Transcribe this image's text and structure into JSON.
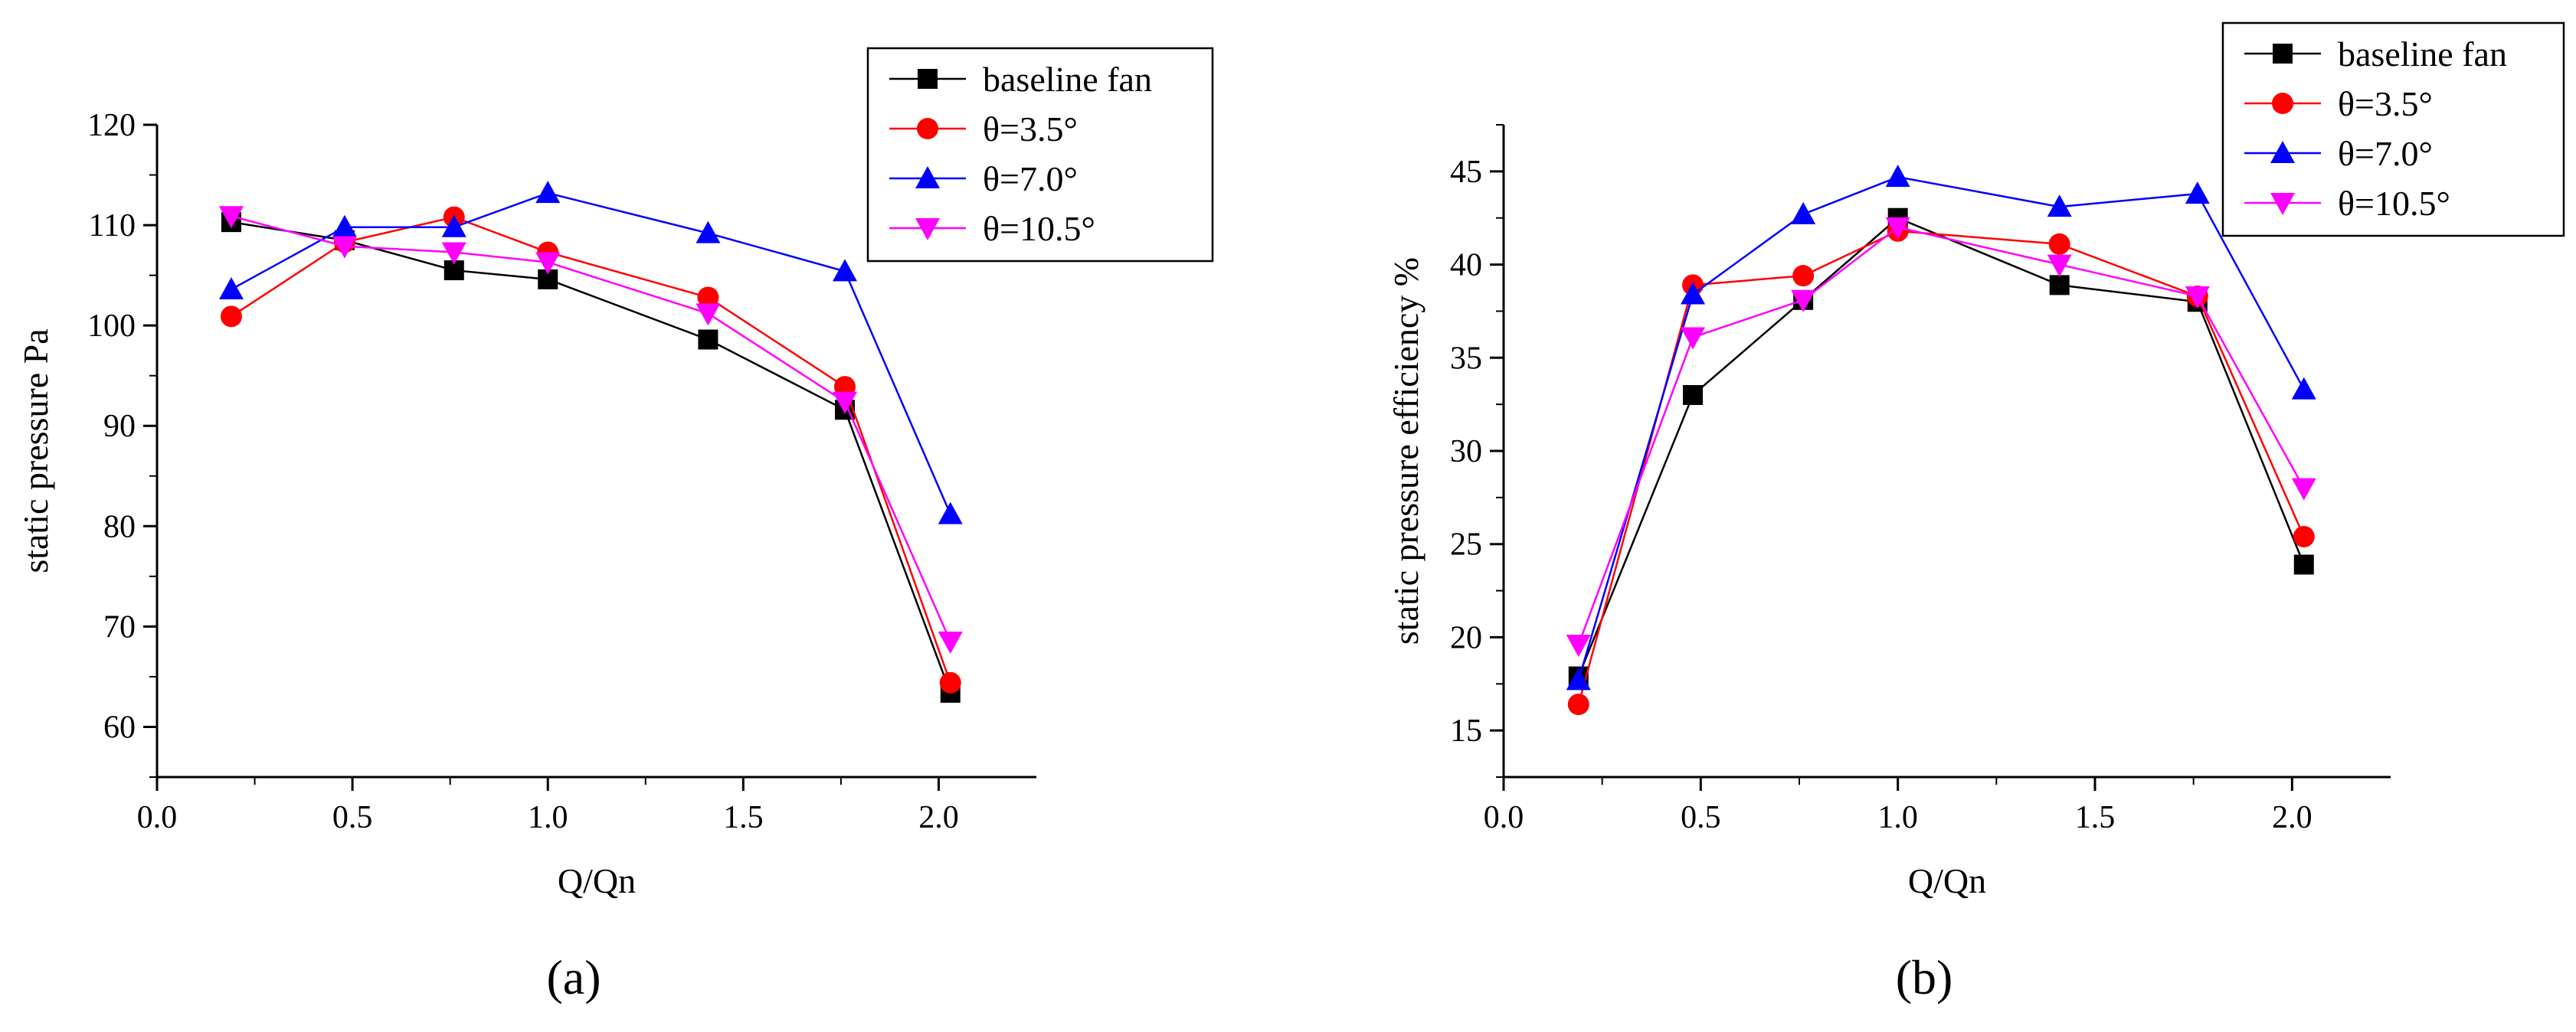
{
  "chart_data": [
    {
      "type": "line",
      "panel_label": "(a)",
      "xlabel": "Q/Qn",
      "ylabel": "static pressure Pa",
      "xlim": [
        0.0,
        2.25
      ],
      "ylim": [
        55,
        120
      ],
      "xticks": [
        0.0,
        0.5,
        1.0,
        1.5,
        2.0
      ],
      "xtick_labels": [
        "0.0",
        "0.5",
        "1.0",
        "1.5",
        "2.0"
      ],
      "yticks": [
        60,
        70,
        80,
        90,
        100,
        110,
        120
      ],
      "ytick_labels": [
        "60",
        "70",
        "80",
        "90",
        "100",
        "110",
        "120"
      ],
      "grid": false,
      "legend_position": "top-right",
      "x": [
        0.19,
        0.48,
        0.76,
        1.0,
        1.41,
        1.76,
        2.03
      ],
      "series": [
        {
          "name": "baseline fan",
          "color": "#000000",
          "marker": "square",
          "values": [
            110.3,
            108.5,
            105.5,
            104.6,
            98.6,
            91.6,
            63.4
          ]
        },
        {
          "name": "θ=3.5°",
          "color": "#ff0000",
          "marker": "circle",
          "values": [
            100.9,
            108.3,
            110.8,
            107.3,
            102.8,
            93.9,
            64.4
          ]
        },
        {
          "name": "θ=7.0°",
          "color": "#0000ff",
          "marker": "triangle-up",
          "values": [
            103.6,
            109.8,
            109.8,
            113.2,
            109.2,
            105.4,
            81.2
          ]
        },
        {
          "name": "θ=10.5°",
          "color": "#ff00ff",
          "marker": "triangle-down",
          "values": [
            110.9,
            107.9,
            107.3,
            106.3,
            101.2,
            92.4,
            68.5
          ]
        }
      ]
    },
    {
      "type": "line",
      "panel_label": "(b)",
      "xlabel": "Q/Qn",
      "ylabel": "static pressure efficiency %",
      "xlim": [
        0.0,
        2.25
      ],
      "ylim": [
        12.5,
        47.5
      ],
      "xticks": [
        0.0,
        0.5,
        1.0,
        1.5,
        2.0
      ],
      "xtick_labels": [
        "0.0",
        "0.5",
        "1.0",
        "1.5",
        "2.0"
      ],
      "yticks": [
        15,
        20,
        25,
        30,
        35,
        40,
        45
      ],
      "ytick_labels": [
        "15",
        "20",
        "25",
        "30",
        "35",
        "40",
        "45"
      ],
      "grid": false,
      "legend_position": "top-right",
      "x": [
        0.19,
        0.48,
        0.76,
        1.0,
        1.41,
        1.76,
        2.03
      ],
      "series": [
        {
          "name": "baseline fan",
          "color": "#000000",
          "marker": "square",
          "values": [
            17.9,
            33.0,
            38.1,
            42.5,
            38.9,
            38.0,
            23.9
          ]
        },
        {
          "name": "θ=3.5°",
          "color": "#ff0000",
          "marker": "circle",
          "values": [
            16.4,
            38.9,
            39.4,
            41.8,
            41.1,
            38.3,
            25.4
          ]
        },
        {
          "name": "θ=7.0°",
          "color": "#0000ff",
          "marker": "triangle-up",
          "values": [
            17.7,
            38.4,
            42.7,
            44.7,
            43.1,
            43.8,
            33.3
          ]
        },
        {
          "name": "θ=10.5°",
          "color": "#ff00ff",
          "marker": "triangle-down",
          "values": [
            19.6,
            36.1,
            38.1,
            42.0,
            40.0,
            38.3,
            28.0
          ]
        }
      ]
    }
  ]
}
